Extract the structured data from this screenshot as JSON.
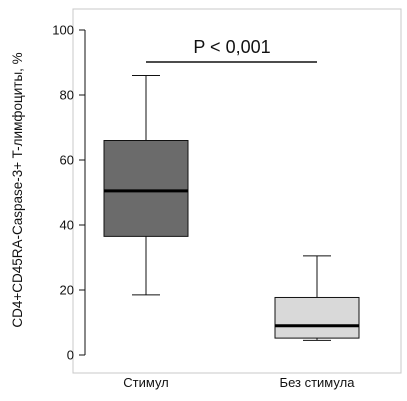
{
  "chart_data": {
    "type": "box",
    "ylabel": "CD4+CD45RA-Caspase-3+ T-лимфоциты, %",
    "ylim": [
      0,
      100
    ],
    "yticks": [
      0,
      20,
      40,
      60,
      80,
      100
    ],
    "ytick_labels": [
      "0",
      "20",
      "40",
      "60",
      "80",
      "100"
    ],
    "grid": false,
    "categories": [
      "Стимул",
      "Без стимула"
    ],
    "boxes": [
      {
        "category": "Стимул",
        "min": 18.5,
        "q1": 36.5,
        "median": 50.5,
        "q3": 66,
        "max": 86,
        "color": "#6b6b6b"
      },
      {
        "category": "Без стимула",
        "min": 4.5,
        "q1": 5.2,
        "median": 9,
        "q3": 17.7,
        "max": 30.5,
        "color": "#d9d9d9"
      }
    ],
    "annotation": {
      "text": "P < 0,001"
    }
  }
}
